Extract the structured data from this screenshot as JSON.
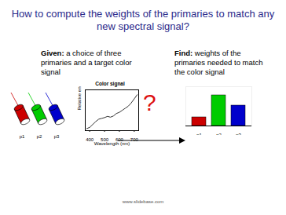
{
  "slide": {
    "title": "How to compute the weights of the primaries to match any new spectral signal?",
    "given": {
      "label": "Given:",
      "text": "a choice of three primaries and a target color signal"
    },
    "find": {
      "label": "Find:",
      "text": "weights of the primaries needed to match the color signal"
    },
    "question": "?",
    "footer": "www.slidebase.com"
  },
  "chart_data": [
    {
      "type": "line",
      "title": "Color signal",
      "xlabel": "Wavelength (nm)",
      "ylabel": "Relative energy",
      "x": [
        380,
        400,
        420,
        440,
        460,
        480,
        500,
        520,
        540,
        560,
        580,
        600,
        620,
        640,
        660,
        680,
        700,
        720
      ],
      "values": [
        0.05,
        0.08,
        0.15,
        0.22,
        0.28,
        0.3,
        0.32,
        0.35,
        0.33,
        0.36,
        0.42,
        0.45,
        0.5,
        0.55,
        0.6,
        0.68,
        0.78,
        0.88
      ],
      "color": "#333333",
      "xlim": [
        370,
        730
      ],
      "xticks": [
        400,
        500,
        600,
        700
      ],
      "ylim": [
        0,
        1
      ],
      "tick_labels": "x"
    },
    {
      "type": "bar",
      "categories": [
        "p1",
        "p2",
        "p3"
      ],
      "values": [
        0.22,
        0.78,
        0.52
      ],
      "colors": [
        "#cc0000",
        "#00cc00",
        "#0000cc"
      ],
      "ylim": [
        0,
        1
      ],
      "tick_labels": "x"
    }
  ]
}
